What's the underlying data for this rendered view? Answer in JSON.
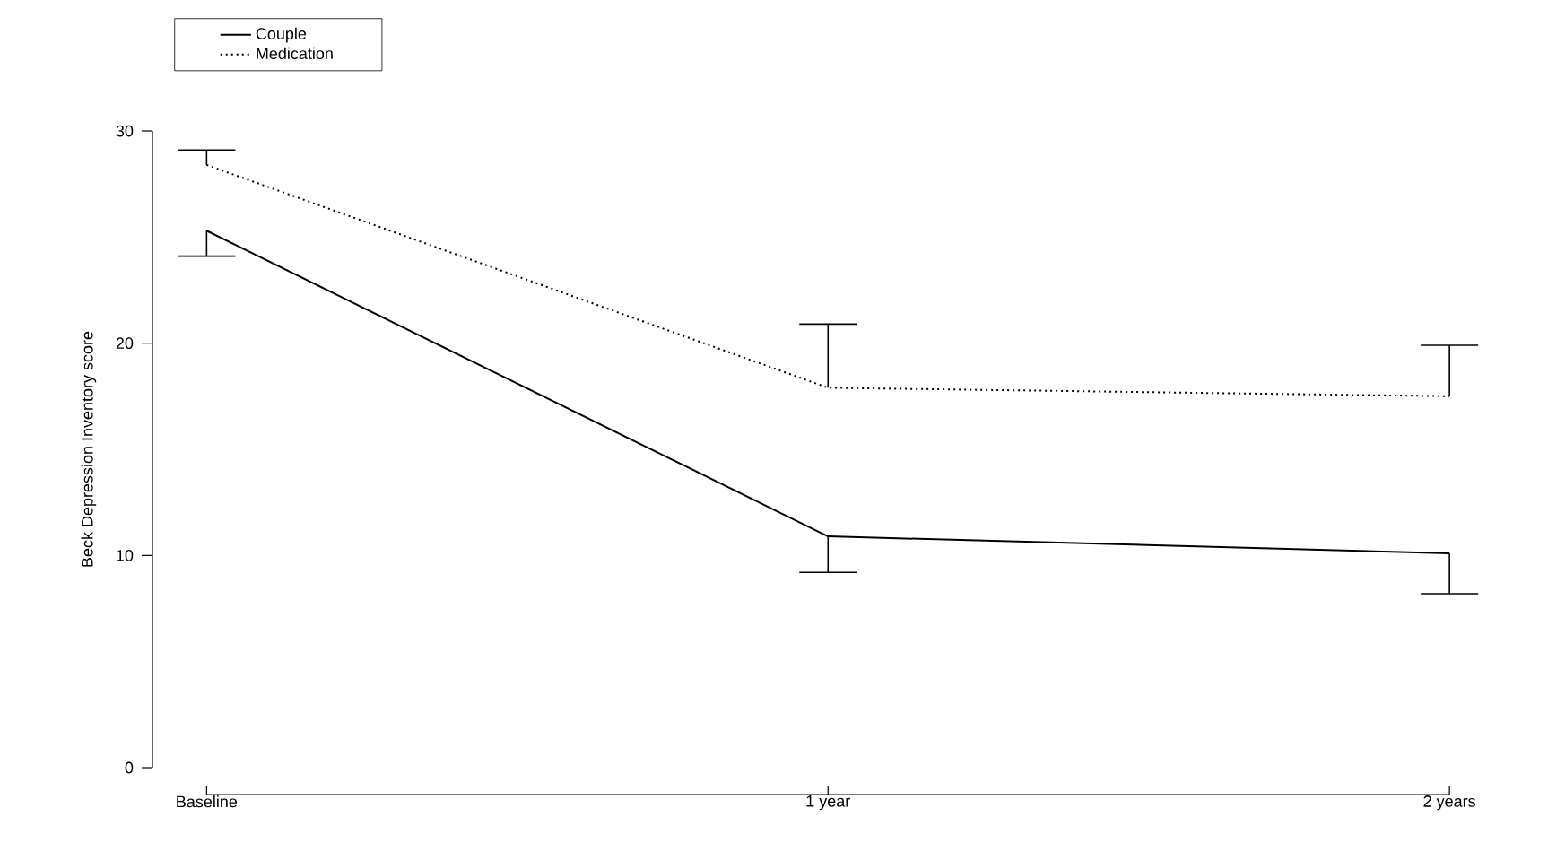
{
  "chart_data": {
    "type": "line",
    "ylabel": "Beck Depression Inventory score",
    "categories": [
      "Baseline",
      "1 year",
      "2 years"
    ],
    "series": [
      {
        "name": "Couple",
        "color": "#000000",
        "line_style": "solid",
        "values": [
          25.3,
          10.9,
          10.1
        ],
        "errors": [
          [
            24.1,
            25.3
          ],
          [
            9.2,
            10.9
          ],
          [
            8.2,
            10.1
          ]
        ]
      },
      {
        "name": "Medication",
        "color": "#000000",
        "line_style": "dotted",
        "values": [
          28.4,
          17.9,
          17.5
        ],
        "errors": [
          [
            28.4,
            29.1
          ],
          [
            17.9,
            20.9
          ],
          [
            17.5,
            19.9
          ]
        ]
      }
    ],
    "ylim": [
      0,
      30
    ],
    "yticks": [
      0,
      10,
      20,
      30
    ],
    "legend": "top left",
    "marker": "none",
    "grid": false
  }
}
